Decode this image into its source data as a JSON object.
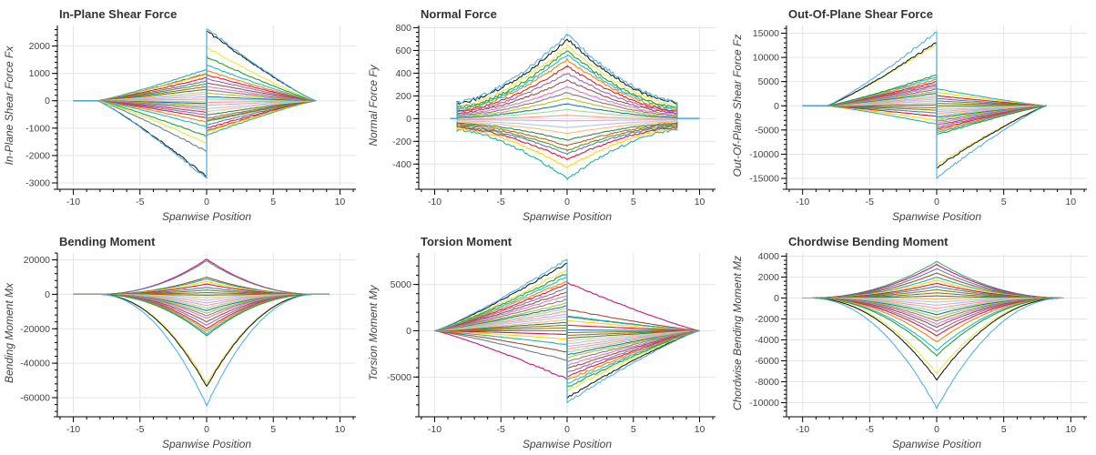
{
  "chart_data": [
    {
      "type": "line",
      "title": "In-Plane Shear Force",
      "xlabel": "Spanwise Position",
      "ylabel": "In-Plane Shear Force Fx",
      "xlim": [
        -11.2,
        11.2
      ],
      "ylim": [
        -3100,
        2750
      ],
      "x_ticks": [
        -10,
        -5,
        0,
        5,
        10
      ],
      "y_ticks": [
        -3000,
        -2000,
        -1000,
        0,
        1000,
        2000
      ],
      "y_tick_labels": [
        "-3000",
        "-2000",
        "-1000",
        "0",
        "1000",
        "2000"
      ],
      "grid": true,
      "shape": "shear",
      "span": [
        -10,
        8.2
      ],
      "start_x": -8.2,
      "series_left_peak": [
        -2850,
        -2780,
        -1550,
        -1300,
        -950,
        -780,
        -620,
        -520,
        -420,
        -330,
        -250,
        -170,
        -100,
        -40,
        60,
        150,
        240,
        320,
        420,
        520,
        620,
        720,
        840,
        960,
        1150,
        1000,
        -1850
      ],
      "series_right_peak": [
        2650,
        2560,
        1950,
        1600,
        1300,
        1100,
        950,
        800,
        650,
        520,
        400,
        280,
        150,
        60,
        -60,
        -170,
        -290,
        -390,
        -520,
        -640,
        -760,
        -880,
        -1000,
        -1150,
        -1250,
        -1100,
        -720
      ]
    },
    {
      "type": "line",
      "title": "Normal Force",
      "xlabel": "Spanwise Position",
      "ylabel": "Normal Force Fy",
      "xlim": [
        -11.2,
        11.2
      ],
      "ylim": [
        -590,
        820
      ],
      "x_ticks": [
        -10,
        -5,
        0,
        5,
        10
      ],
      "y_ticks": [
        -400,
        -200,
        0,
        200,
        400,
        600,
        800
      ],
      "y_tick_labels": [
        "-400",
        "-200",
        "0",
        "200",
        "400",
        "600",
        "800"
      ],
      "grid": true,
      "shape": "normal",
      "span": [
        -8.3,
        8.3
      ],
      "series_edge": [
        150,
        140,
        120,
        100,
        90,
        80,
        70,
        60,
        50,
        40,
        30,
        20,
        10,
        5,
        -5,
        -10,
        -20,
        -30,
        -40,
        -50,
        -60,
        -70,
        -80,
        -90,
        -100
      ],
      "series_center": [
        740,
        700,
        640,
        600,
        560,
        520,
        460,
        400,
        340,
        280,
        230,
        180,
        130,
        80,
        30,
        -20,
        -80,
        -130,
        -190,
        -240,
        -280,
        -310,
        -360,
        -430,
        -530
      ]
    },
    {
      "type": "line",
      "title": "Out-Of-Plane Shear Force",
      "xlabel": "Spanwise Position",
      "ylabel": "Out-Of-Plane Shear Force Fz",
      "xlim": [
        -11.2,
        11.2
      ],
      "ylim": [
        -16500,
        16600
      ],
      "x_ticks": [
        -10,
        -5,
        0,
        5,
        10
      ],
      "y_ticks": [
        -15000,
        -10000,
        -5000,
        0,
        5000,
        10000,
        15000
      ],
      "y_tick_labels": [
        "-15000",
        "-10000",
        "-5000",
        "0",
        "5000",
        "10000",
        "15000"
      ],
      "grid": true,
      "shape": "shear",
      "span": [
        -10,
        8.2
      ],
      "start_x": -8.2,
      "series_left_peak": [
        15300,
        13200,
        12800,
        6400,
        6000,
        5500,
        5000,
        4600,
        4200,
        3800,
        3400,
        3000,
        2600,
        2200,
        1800,
        1400,
        1000,
        600,
        200,
        -400,
        -900,
        -1500,
        -2200,
        -3000,
        -3800
      ],
      "series_right_peak": [
        -14800,
        -12700,
        -12200,
        -6000,
        -5600,
        -5200,
        -4800,
        -4400,
        -4000,
        -3600,
        -3200,
        -2800,
        -2400,
        -2000,
        -1600,
        -1200,
        -800,
        -400,
        0,
        500,
        1000,
        1500,
        2100,
        2800,
        3500
      ]
    },
    {
      "type": "line",
      "title": "Bending Moment",
      "xlabel": "Spanwise Position",
      "ylabel": "Bending Moment Mx",
      "xlim": [
        -11.2,
        11.2
      ],
      "ylim": [
        -69000,
        24000
      ],
      "x_ticks": [
        -10,
        -5,
        0,
        5,
        10
      ],
      "y_ticks": [
        -60000,
        -40000,
        -20000,
        0,
        20000
      ],
      "y_tick_labels": [
        "-60000",
        "-40000",
        "-20000",
        "0",
        "20000"
      ],
      "grid": true,
      "shape": "moment",
      "span": [
        -10,
        10
      ],
      "start_x": -8.2,
      "series_peak": [
        -64500,
        -53500,
        -52000,
        -24000,
        -23000,
        -21500,
        -20000,
        -18000,
        -16000,
        -14000,
        -12500,
        -11000,
        -9500,
        -8000,
        -6500,
        -5000,
        -3500,
        -2000,
        -500,
        1000,
        2500,
        4000,
        6000,
        7500,
        9000,
        10000,
        19500,
        20500
      ]
    },
    {
      "type": "line",
      "title": "Torsion Moment",
      "xlabel": "Spanwise Position",
      "ylabel": "Torsion Moment My",
      "xlim": [
        -11.2,
        11.2
      ],
      "ylim": [
        -8900,
        8400
      ],
      "x_ticks": [
        -10,
        -5,
        0,
        5,
        10
      ],
      "y_ticks": [
        -5000,
        0,
        5000
      ],
      "y_tick_labels": [
        "-5000",
        "0",
        "5000"
      ],
      "grid": true,
      "shape": "shear",
      "span": [
        -10,
        10
      ],
      "start_x": -10,
      "series_left_peak": [
        7700,
        7300,
        6600,
        6200,
        5800,
        5400,
        5000,
        4600,
        4200,
        3800,
        3400,
        3000,
        2700,
        2400,
        2100,
        1800,
        1500,
        1200,
        900,
        600,
        300,
        0,
        -400,
        -900,
        -1500,
        -2300,
        -3200,
        -5200
      ],
      "series_right_peak": [
        -7700,
        -7200,
        -6500,
        -6100,
        -5700,
        -5300,
        -4900,
        -4500,
        -4100,
        -3700,
        -3300,
        -2900,
        -2600,
        -2300,
        -2000,
        -1700,
        -1400,
        -1100,
        -800,
        -500,
        -200,
        100,
        600,
        1100,
        1600,
        2300,
        1500,
        5200
      ]
    },
    {
      "type": "line",
      "title": "Chordwise Bending Moment",
      "xlabel": "Spanwise Position",
      "ylabel": "Chordwise Bending Moment Mz",
      "xlim": [
        -11.2,
        11.2
      ],
      "ylim": [
        -11000,
        4300
      ],
      "x_ticks": [
        -10,
        -5,
        0,
        5,
        10
      ],
      "y_ticks": [
        -10000,
        -8000,
        -6000,
        -4000,
        -2000,
        0,
        2000,
        4000
      ],
      "y_tick_labels": [
        "-10000",
        "-8000",
        "-6000",
        "-4000",
        "-2000",
        "0",
        "2000",
        "4000"
      ],
      "grid": true,
      "shape": "moment",
      "span": [
        -10,
        10
      ],
      "start_x": -9.5,
      "series_peak": [
        -10500,
        -7800,
        -7200,
        -5500,
        -5000,
        -4200,
        -3600,
        -3200,
        -2800,
        -2500,
        -2200,
        -1900,
        -1600,
        -1300,
        -1000,
        -700,
        -400,
        -100,
        200,
        500,
        800,
        1100,
        1400,
        1700,
        2000,
        2400,
        2800,
        3200,
        3500
      ]
    }
  ],
  "palette": [
    "#4fb3e8",
    "#1f1f1f",
    "#e8e84a",
    "#2ca02c",
    "#17becf",
    "#ff7f0e",
    "#d62728",
    "#9467bd",
    "#8c564b",
    "#e377c2",
    "#7f7f7f",
    "#bcbd22",
    "#1f77b4",
    "#98df8a",
    "#ff9896",
    "#c5b0d5",
    "#aec7e8",
    "#ffbb78",
    "#2e8b57",
    "#b5651d",
    "#6b8e23",
    "#4682b4",
    "#dc143c",
    "#ffd700",
    "#20b2aa",
    "#a0522d",
    "#708090",
    "#c71585",
    "#3cb371"
  ]
}
